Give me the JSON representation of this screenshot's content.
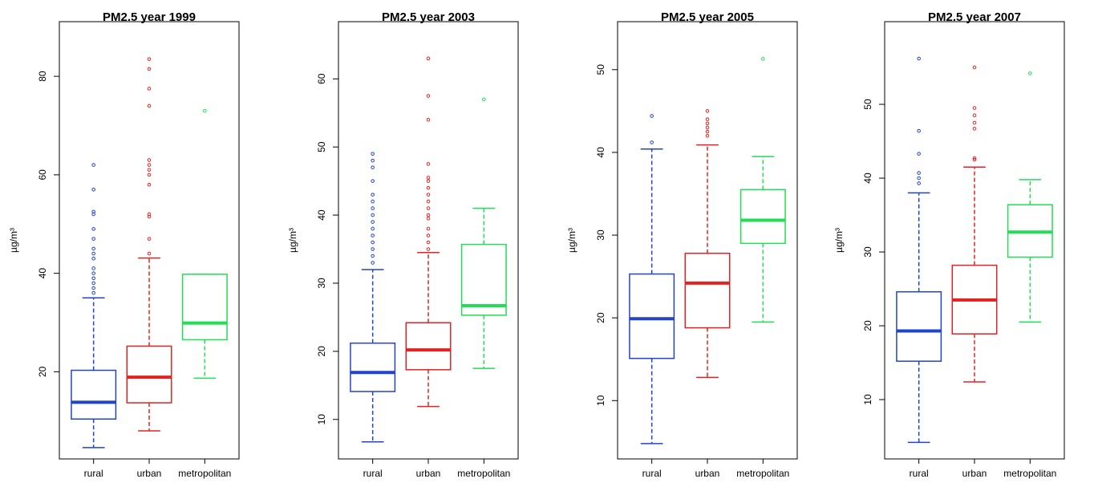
{
  "chart_data": [
    {
      "type": "box",
      "title": "PM2.5 year 1999",
      "y_label": "µg/m³",
      "categories": [
        "rural",
        "urban",
        "metropolitan"
      ],
      "ylim": [
        2.3,
        91.1
      ],
      "yticks": [
        20,
        40,
        60,
        80
      ],
      "boxes": [
        {
          "color": "#2244cc",
          "whisker_low": 4.6,
          "q1": 10.4,
          "median": 13.8,
          "q3": 20.3,
          "whisker_high": 35.0,
          "outliers": [
            36,
            37,
            38,
            39,
            40,
            41,
            43,
            44,
            45,
            47,
            49,
            52,
            52.5,
            57,
            62
          ]
        },
        {
          "color": "#e52222",
          "whisker_low": 8.0,
          "q1": 13.7,
          "median": 18.9,
          "q3": 25.2,
          "whisker_high": 43.1,
          "outliers": [
            44,
            47,
            51.5,
            52,
            58,
            60,
            61,
            62,
            63,
            74,
            77.5,
            81.5,
            83.5
          ]
        },
        {
          "color": "#22dd55",
          "whisker_low": 18.7,
          "q1": 26.5,
          "median": 29.9,
          "q3": 39.8,
          "whisker_high": 39.8,
          "outliers": [
            73
          ]
        }
      ]
    },
    {
      "type": "box",
      "title": "PM2.5 year 2003",
      "y_label": "µg/m³",
      "categories": [
        "rural",
        "urban",
        "metropolitan"
      ],
      "ylim": [
        4.2,
        68.4
      ],
      "yticks": [
        10,
        20,
        30,
        40,
        50,
        60
      ],
      "boxes": [
        {
          "color": "#2244cc",
          "whisker_low": 6.7,
          "q1": 14.1,
          "median": 16.9,
          "q3": 21.2,
          "whisker_high": 32.0,
          "outliers": [
            33,
            34,
            35,
            36,
            37,
            38,
            39,
            40,
            41,
            42,
            43,
            45,
            47,
            48,
            49
          ]
        },
        {
          "color": "#e52222",
          "whisker_low": 11.9,
          "q1": 17.3,
          "median": 20.2,
          "q3": 24.2,
          "whisker_high": 34.5,
          "outliers": [
            35,
            36,
            37,
            38,
            39.5,
            40,
            41,
            42,
            43,
            44,
            45,
            45.5,
            47.5,
            54,
            57.5,
            63
          ]
        },
        {
          "color": "#22dd55",
          "whisker_low": 17.5,
          "q1": 25.3,
          "median": 26.7,
          "q3": 35.7,
          "whisker_high": 41.0,
          "outliers": [
            57
          ]
        }
      ]
    },
    {
      "type": "box",
      "title": "PM2.5 year 2005",
      "y_label": "µg/m³",
      "categories": [
        "rural",
        "urban",
        "metropolitan"
      ],
      "ylim": [
        2.95,
        55.8
      ],
      "yticks": [
        10,
        20,
        30,
        40,
        50
      ],
      "boxes": [
        {
          "color": "#2244cc",
          "whisker_low": 4.8,
          "q1": 15.1,
          "median": 19.9,
          "q3": 25.3,
          "whisker_high": 40.4,
          "outliers": [
            41.2,
            44.4
          ]
        },
        {
          "color": "#e52222",
          "whisker_low": 12.8,
          "q1": 18.8,
          "median": 24.2,
          "q3": 27.8,
          "whisker_high": 40.9,
          "outliers": [
            42,
            42.5,
            43,
            43.5,
            44,
            45
          ]
        },
        {
          "color": "#22dd55",
          "whisker_low": 19.5,
          "q1": 29.0,
          "median": 31.8,
          "q3": 35.5,
          "whisker_high": 39.5,
          "outliers": [
            51.3
          ]
        }
      ]
    },
    {
      "type": "box",
      "title": "PM2.5 year 2007",
      "y_label": "µg/m³",
      "categories": [
        "rural",
        "urban",
        "metropolitan"
      ],
      "ylim": [
        1.96,
        61.2
      ],
      "yticks": [
        10,
        20,
        30,
        40,
        50
      ],
      "boxes": [
        {
          "color": "#2244cc",
          "whisker_low": 4.2,
          "q1": 15.2,
          "median": 19.3,
          "q3": 24.6,
          "whisker_high": 38.0,
          "outliers": [
            39.3,
            40,
            40.7,
            43.3,
            46.4,
            56.2
          ]
        },
        {
          "color": "#e52222",
          "whisker_low": 12.4,
          "q1": 18.9,
          "median": 23.5,
          "q3": 28.2,
          "whisker_high": 41.5,
          "outliers": [
            42.5,
            42.7,
            46.7,
            47.5,
            48.5,
            49.5,
            55
          ]
        },
        {
          "color": "#22dd55",
          "whisker_low": 20.5,
          "q1": 29.3,
          "median": 32.7,
          "q3": 36.4,
          "whisker_high": 39.8,
          "outliers": [
            54.2
          ]
        }
      ]
    }
  ]
}
